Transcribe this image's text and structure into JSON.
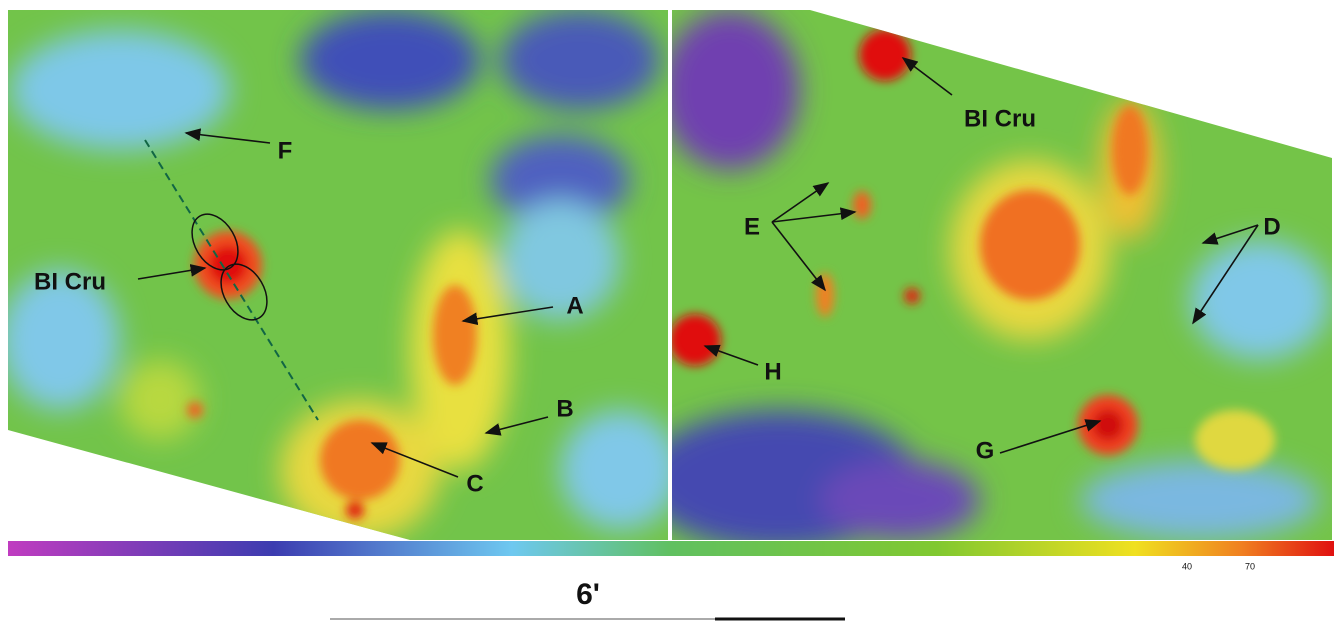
{
  "left_panel": {
    "labels": [
      "F",
      "BI Cru",
      "A",
      "B",
      "C"
    ]
  },
  "right_panel": {
    "labels": [
      "BI Cru",
      "E",
      "D",
      "H",
      "G"
    ]
  },
  "colorbar": {
    "ticks": [
      "40",
      "70"
    ]
  },
  "scale_bar": {
    "label": "6'"
  }
}
